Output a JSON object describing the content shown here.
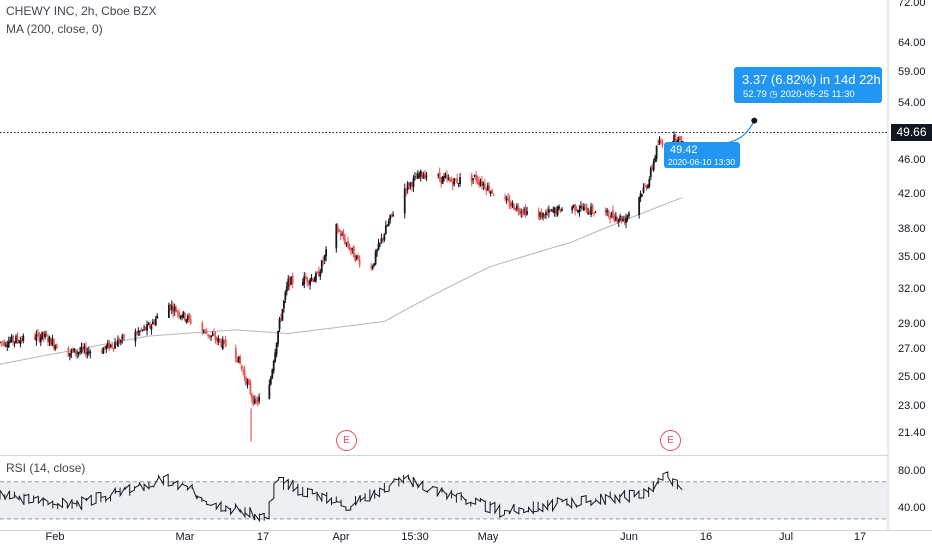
{
  "legend": {
    "title": "CHEWY INC, 2h, Cboe BZX",
    "ma": "MA (200, close, 0)",
    "rsi": "RSI (14, close)"
  },
  "price_axis": [
    "72.00",
    "64.00",
    "59.00",
    "54.00",
    "46.00",
    "42.00",
    "38.00",
    "35.00",
    "32.00",
    "29.00",
    "27.00",
    "25.00",
    "23.00",
    "21.40"
  ],
  "last_price": "49.66",
  "rsi_axis": [
    "80.00",
    "40.00"
  ],
  "time_axis": [
    "Feb",
    "Mar",
    "17",
    "Apr",
    "15:30",
    "May",
    "Jun",
    "16",
    "Jul",
    "17"
  ],
  "projection": {
    "change": "3.37 (6.82%) in 14d 22h",
    "target": "52.79",
    "target_date": "2020-06-25  11:30",
    "start_price": "49.42",
    "start_date": "2020-06-10 13:30"
  },
  "earnings_marker": "E",
  "colors": {
    "up": "#131722",
    "down": "#ef5350",
    "ma": "#b2b5be",
    "callout": "#2196f3",
    "earnings": "#e84b5a"
  },
  "chart_data": {
    "type": "candlestick",
    "symbol": "CHEWY INC",
    "interval": "2h",
    "exchange": "Cboe BZX",
    "price_scale": "log",
    "date_range": [
      "2020-01-20",
      "2020-06-10"
    ],
    "anchors": [
      {
        "date": "2020-01-20",
        "close": 28.3
      },
      {
        "date": "2020-01-29",
        "close": 28.8
      },
      {
        "date": "2020-02-03",
        "close": 27.5
      },
      {
        "date": "2020-02-10",
        "close": 27.7
      },
      {
        "date": "2020-02-20",
        "close": 29.5
      },
      {
        "date": "2020-02-24",
        "close": 31.5
      },
      {
        "date": "2020-03-02",
        "close": 29.3
      },
      {
        "date": "2020-03-09",
        "close": 27.5
      },
      {
        "date": "2020-03-13",
        "close": 23.8
      },
      {
        "date": "2020-03-16",
        "close": 24.8
      },
      {
        "date": "2020-03-18",
        "close": 29.5
      },
      {
        "date": "2020-03-20",
        "close": 33.5
      },
      {
        "date": "2020-03-26",
        "close": 34.0
      },
      {
        "date": "2020-03-30",
        "close": 39.0
      },
      {
        "date": "2020-04-03",
        "close": 36.0
      },
      {
        "date": "2020-04-06",
        "close": 34.5
      },
      {
        "date": "2020-04-09",
        "close": 38.5
      },
      {
        "date": "2020-04-13",
        "close": 43.5
      },
      {
        "date": "2020-04-17",
        "close": 45.5
      },
      {
        "date": "2020-04-23",
        "close": 44.5
      },
      {
        "date": "2020-04-28",
        "close": 45.0
      },
      {
        "date": "2020-05-04",
        "close": 42.0
      },
      {
        "date": "2020-05-11",
        "close": 40.3
      },
      {
        "date": "2020-05-18",
        "close": 41.5
      },
      {
        "date": "2020-05-26",
        "close": 40.5
      },
      {
        "date": "2020-05-29",
        "close": 40.0
      },
      {
        "date": "2020-06-03",
        "close": 44.5
      },
      {
        "date": "2020-06-05",
        "close": 49.5
      },
      {
        "date": "2020-06-09",
        "close": 50.3
      },
      {
        "date": "2020-06-10",
        "close": 49.42
      }
    ],
    "notable": {
      "low": 21.4,
      "low_date": "2020-03-16",
      "high": 51.5
    },
    "ma200": [
      {
        "date": "2020-01-20",
        "value": 26.6
      },
      {
        "date": "2020-02-20",
        "value": 28.8
      },
      {
        "date": "2020-03-09",
        "value": 29.3
      },
      {
        "date": "2020-03-20",
        "value": 29.0
      },
      {
        "date": "2020-04-09",
        "value": 30.0
      },
      {
        "date": "2020-05-01",
        "value": 35.0
      },
      {
        "date": "2020-05-18",
        "value": 37.5
      },
      {
        "date": "2020-06-10",
        "value": 42.5
      }
    ],
    "rsi14": [
      {
        "date": "2020-01-20",
        "value": 55
      },
      {
        "date": "2020-02-05",
        "value": 45
      },
      {
        "date": "2020-02-24",
        "value": 72
      },
      {
        "date": "2020-03-05",
        "value": 48
      },
      {
        "date": "2020-03-16",
        "value": 30
      },
      {
        "date": "2020-03-18",
        "value": 70
      },
      {
        "date": "2020-04-02",
        "value": 45
      },
      {
        "date": "2020-04-13",
        "value": 73
      },
      {
        "date": "2020-05-04",
        "value": 38
      },
      {
        "date": "2020-06-03",
        "value": 58
      },
      {
        "date": "2020-06-07",
        "value": 76
      },
      {
        "date": "2020-06-10",
        "value": 60
      }
    ],
    "rsi_bands": [
      30,
      70
    ],
    "earnings_dates": [
      "2020-03-26",
      "2020-06-09"
    ],
    "projection": {
      "from_date": "2020-06-10",
      "from_price": 49.42,
      "to_date": "2020-06-25",
      "to_price": 52.79
    }
  }
}
